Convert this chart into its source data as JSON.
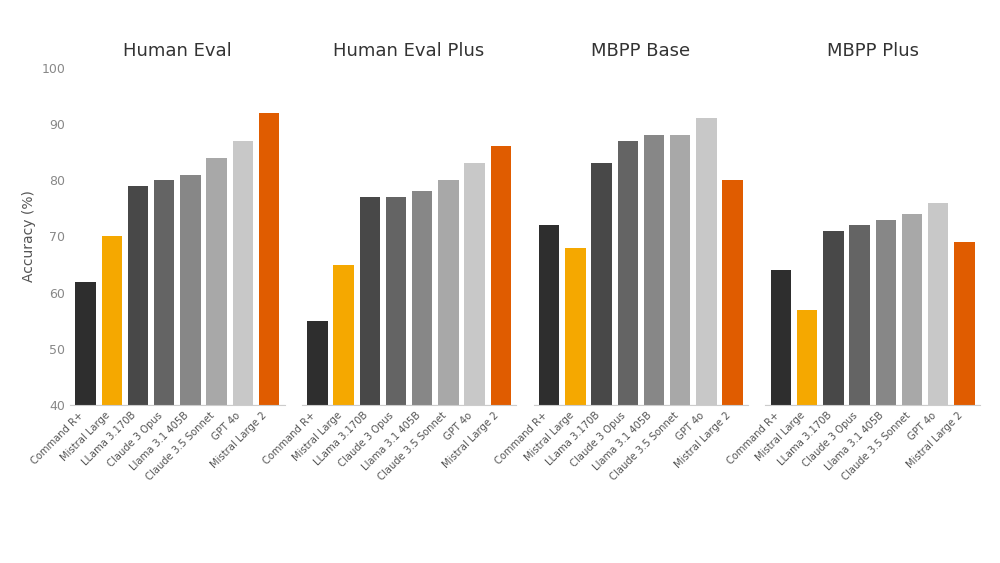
{
  "groups": [
    "Human Eval",
    "Human Eval Plus",
    "MBPP Base",
    "MBPP Plus"
  ],
  "models": [
    "Command R+",
    "Mistral Large",
    "LLama 3.170B",
    "Claude 3 Opus",
    "Llama 3.1 405B",
    "Claude 3.5 Sonnet",
    "GPT 4o",
    "Mistral Large 2"
  ],
  "bar_colors": [
    "#2e2e2e",
    "#F5A800",
    "#484848",
    "#646464",
    "#878787",
    "#a8a8a8",
    "#c8c8c8",
    "#E05C00"
  ],
  "values": {
    "Human Eval": [
      62,
      70,
      79,
      80,
      81,
      84,
      87,
      92
    ],
    "Human Eval Plus": [
      55,
      65,
      77,
      77,
      78,
      80,
      83,
      86
    ],
    "MBPP Base": [
      72,
      68,
      83,
      87,
      88,
      88,
      91,
      80
    ],
    "MBPP Plus": [
      64,
      57,
      71,
      72,
      73,
      74,
      76,
      69
    ]
  },
  "ylabel": "Accuracy (%)",
  "ylim": [
    40,
    100
  ],
  "yticks": [
    40,
    50,
    60,
    70,
    80,
    90,
    100
  ],
  "background_color": "#ffffff",
  "title_fontsize": 13,
  "tick_label_fontsize": 7.2,
  "ylabel_fontsize": 10,
  "ytick_fontsize": 9
}
